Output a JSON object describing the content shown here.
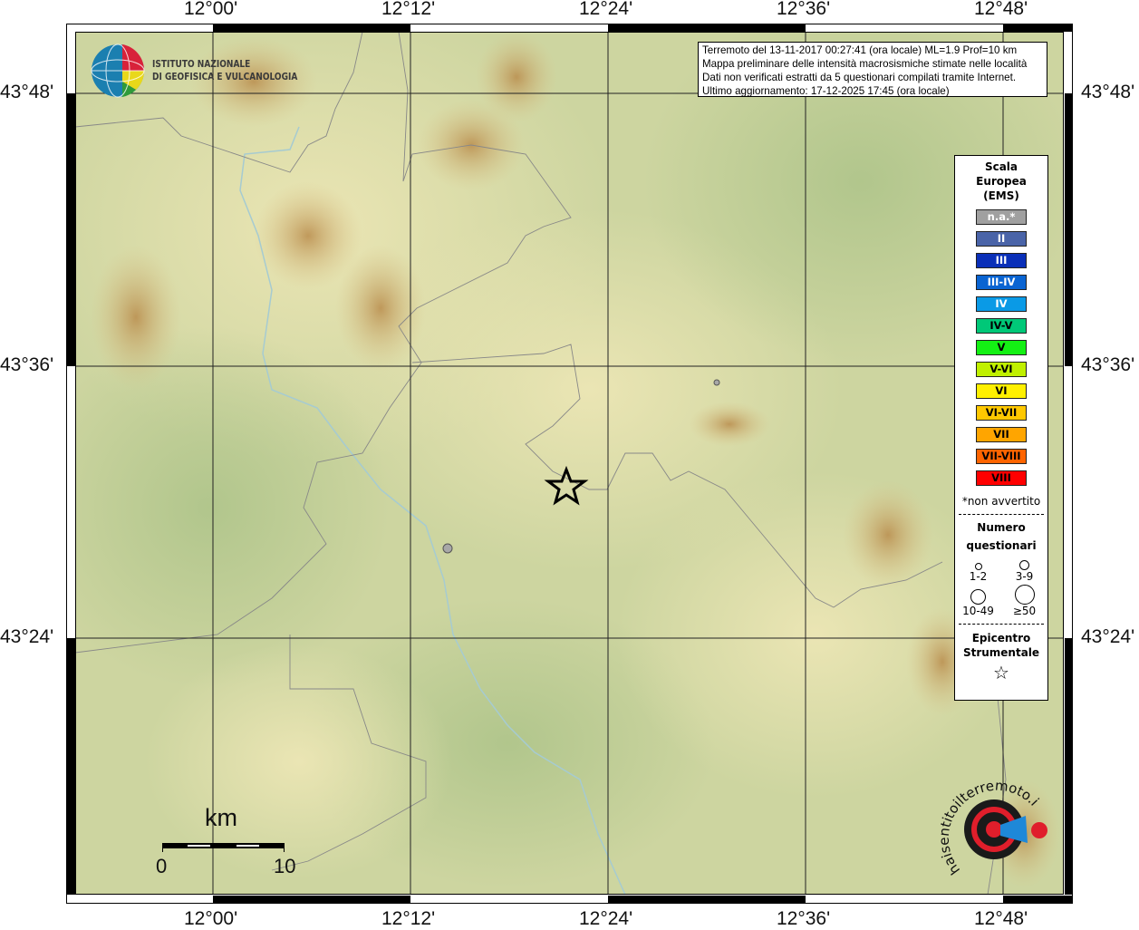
{
  "map": {
    "longitude_labels": [
      "12°00'",
      "12°12'",
      "12°24'",
      "12°36'",
      "12°48'"
    ],
    "latitude_labels": [
      "43°48'",
      "43°36'",
      "43°24'"
    ],
    "epicenter_marker": "star-icon",
    "questionnaire_points": [
      {
        "size_class": "3-9",
        "color": "#a8a8a8"
      },
      {
        "size_class": "1-2",
        "color": "#a8a8a8"
      }
    ]
  },
  "info_box": {
    "line1": "Terremoto del 13-11-2017 00:27:41 (ora locale) ML=1.9 Prof=10 km",
    "line2": "Mappa preliminare delle intensità macrosismiche stimate nelle località",
    "line3": "Dati non verificati estratti da 5 questionari compilati tramite Internet.",
    "line4": "Ultimo aggiornamento: 17-12-2025 17:45 (ora locale)"
  },
  "logo_ingv": {
    "line1": "ISTITUTO NAZIONALE",
    "line2": "DI GEOFISICA E VULCANOLOGIA"
  },
  "logo_hsit": {
    "text": "haisentitoilterremoto.it www."
  },
  "scale_bar": {
    "unit": "km",
    "min_label": "0",
    "max_label": "10"
  },
  "legend": {
    "title_line1": "Scala",
    "title_line2": "Europea",
    "title_line3": "(EMS)",
    "classes": [
      {
        "label": "n.a.*",
        "color": "#a0a0a0",
        "text_color": "#ffffff"
      },
      {
        "label": "II",
        "color": "#4a64a8",
        "text_color": "#ffffff"
      },
      {
        "label": "III",
        "color": "#0a2fb8",
        "text_color": "#ffffff"
      },
      {
        "label": "III-IV",
        "color": "#0a64d2",
        "text_color": "#ffffff"
      },
      {
        "label": "IV",
        "color": "#0a9ae6",
        "text_color": "#ffffff"
      },
      {
        "label": "IV-V",
        "color": "#00c878",
        "text_color": "#000000"
      },
      {
        "label": "V",
        "color": "#14f014",
        "text_color": "#000000"
      },
      {
        "label": "V-VI",
        "color": "#c0f000",
        "text_color": "#000000"
      },
      {
        "label": "VI",
        "color": "#fff000",
        "text_color": "#000000"
      },
      {
        "label": "VI-VII",
        "color": "#ffc800",
        "text_color": "#000000"
      },
      {
        "label": "VII",
        "color": "#ffa500",
        "text_color": "#000000"
      },
      {
        "label": "VII-VIII",
        "color": "#ff6400",
        "text_color": "#000000"
      },
      {
        "label": "VIII",
        "color": "#ff0000",
        "text_color": "#000000"
      }
    ],
    "note": "*non avvertito",
    "count_title_line1": "Numero",
    "count_title_line2": "questionari",
    "count_classes": [
      "1-2",
      "3-9",
      "10-49",
      "≥50"
    ],
    "epicenter_title_line1": "Epicentro",
    "epicenter_title_line2": "Strumentale"
  }
}
